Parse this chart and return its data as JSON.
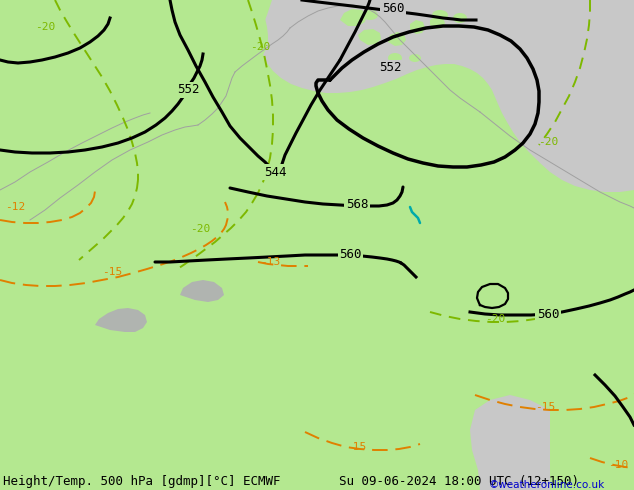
{
  "title_left": "Height/Temp. 500 hPa [gdmp][°C] ECMWF",
  "title_right": "Su 09-06-2024 18:00 UTC (12+150)",
  "watermark": "©weatheronline.co.uk",
  "bg_color": "#c8c8c8",
  "land_color": "#b4e890",
  "sea_color": "#c8c8c8",
  "gray_land_color": "#b8b8b8",
  "font_size_title": 9,
  "font_size_label": 8,
  "black_contour_lw": 2.2,
  "green_contour_lw": 1.4,
  "orange_contour_lw": 1.4
}
